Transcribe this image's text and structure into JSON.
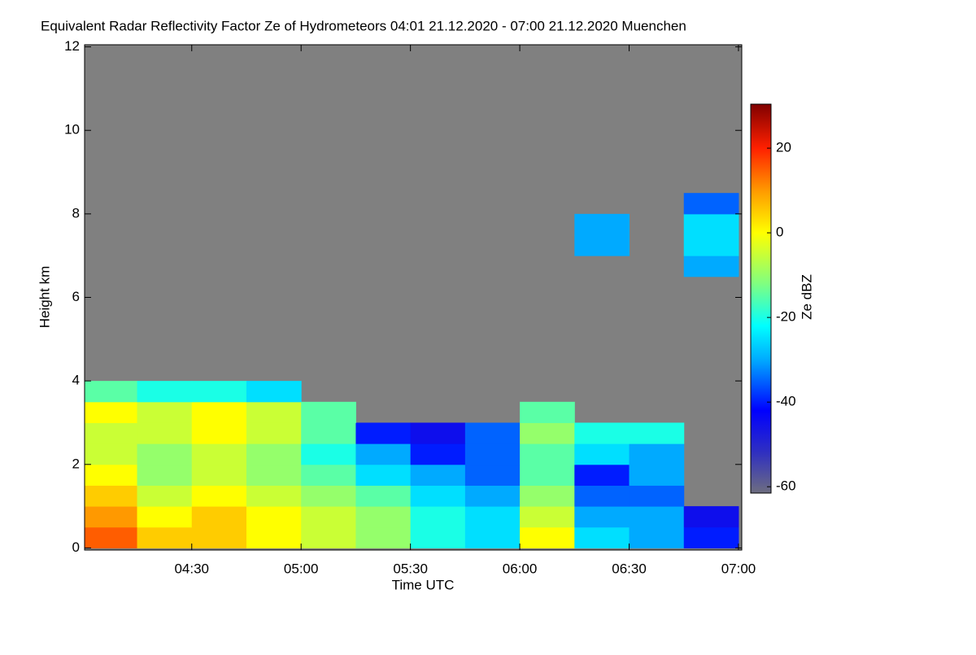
{
  "chart_data": {
    "type": "heatmap",
    "title": "Equivalent Radar Reflectivity Factor Ze of Hydrometeors   04:01 21.12.2020 - 07:00 21.12.2020 Muenchen",
    "x_label": "Time UTC",
    "y_label": "Height km",
    "colorbar_label": "Ze dBZ",
    "x_edges": [
      4,
      4.25,
      4.5,
      4.75,
      5,
      5.25,
      5.5,
      5.75,
      6,
      6.25,
      6.5,
      6.75,
      7
    ],
    "y_edges": [
      0,
      0.5,
      1,
      1.5,
      2,
      2.5,
      3,
      3.5,
      4,
      4.5,
      5,
      5.5,
      6,
      6.5,
      7,
      7.5,
      8,
      8.5
    ],
    "values": [
      [
        15,
        5,
        5,
        0,
        -5,
        -10,
        -20,
        -25,
        0,
        -25,
        -30,
        -40
      ],
      [
        10,
        0,
        5,
        0,
        -5,
        -10,
        -20,
        -25,
        -5,
        -30,
        -30,
        -45
      ],
      [
        5,
        -5,
        0,
        -5,
        -10,
        -15,
        -25,
        -30,
        -10,
        -35,
        -35,
        null
      ],
      [
        0,
        -10,
        -5,
        -10,
        -15,
        -25,
        -30,
        -35,
        -15,
        -40,
        -30,
        null
      ],
      [
        -5,
        -10,
        -5,
        -10,
        -20,
        -30,
        -40,
        -35,
        -15,
        -25,
        -30,
        null
      ],
      [
        -5,
        -5,
        0,
        -5,
        -15,
        -40,
        -45,
        -35,
        -10,
        -20,
        -20,
        null
      ],
      [
        0,
        -5,
        0,
        -5,
        -15,
        null,
        null,
        null,
        -15,
        null,
        null,
        null
      ],
      [
        -15,
        -20,
        -20,
        -25,
        null,
        null,
        null,
        null,
        null,
        null,
        null,
        null
      ],
      [
        null,
        null,
        null,
        null,
        null,
        null,
        null,
        null,
        null,
        null,
        null,
        null
      ],
      [
        null,
        null,
        null,
        null,
        null,
        null,
        null,
        null,
        null,
        null,
        null,
        null
      ],
      [
        null,
        null,
        null,
        null,
        null,
        null,
        null,
        null,
        null,
        null,
        null,
        null
      ],
      [
        null,
        null,
        null,
        null,
        null,
        null,
        null,
        null,
        null,
        null,
        null,
        null
      ],
      [
        null,
        null,
        null,
        null,
        null,
        null,
        null,
        null,
        null,
        null,
        null,
        null
      ],
      [
        null,
        null,
        null,
        null,
        null,
        null,
        null,
        null,
        null,
        null,
        null,
        -30
      ],
      [
        null,
        null,
        null,
        null,
        null,
        null,
        null,
        null,
        null,
        -30,
        null,
        -25
      ],
      [
        null,
        null,
        null,
        null,
        null,
        null,
        null,
        null,
        null,
        -30,
        null,
        -25
      ],
      [
        null,
        null,
        null,
        null,
        null,
        null,
        null,
        null,
        null,
        null,
        null,
        -35
      ]
    ],
    "xlim": [
      4.01,
      7.015
    ],
    "ylim": [
      -0.05,
      12.05
    ],
    "xticks": [
      {
        "value": 4.5,
        "label": "04:30"
      },
      {
        "value": 5,
        "label": "05:00"
      },
      {
        "value": 5.5,
        "label": "05:30"
      },
      {
        "value": 6,
        "label": "06:00"
      },
      {
        "value": 6.5,
        "label": "06:30"
      },
      {
        "value": 7,
        "label": "07:00"
      }
    ],
    "yticks": [
      0,
      2,
      4,
      6,
      8,
      10,
      12
    ],
    "clim": [
      -61.5,
      30.4
    ],
    "cticks": [
      -60,
      -40,
      -20,
      0,
      20
    ],
    "colorscale": [
      [
        -61.5,
        "#6e6e80"
      ],
      [
        -52,
        "#3030c0"
      ],
      [
        -42,
        "#0000ff"
      ],
      [
        -30,
        "#00aaff"
      ],
      [
        -22,
        "#00ffff"
      ],
      [
        -12,
        "#80ff80"
      ],
      [
        0,
        "#ffff00"
      ],
      [
        10,
        "#ff9900"
      ],
      [
        20,
        "#ff2000"
      ],
      [
        30.4,
        "#800000"
      ]
    ],
    "background": "#808080"
  }
}
